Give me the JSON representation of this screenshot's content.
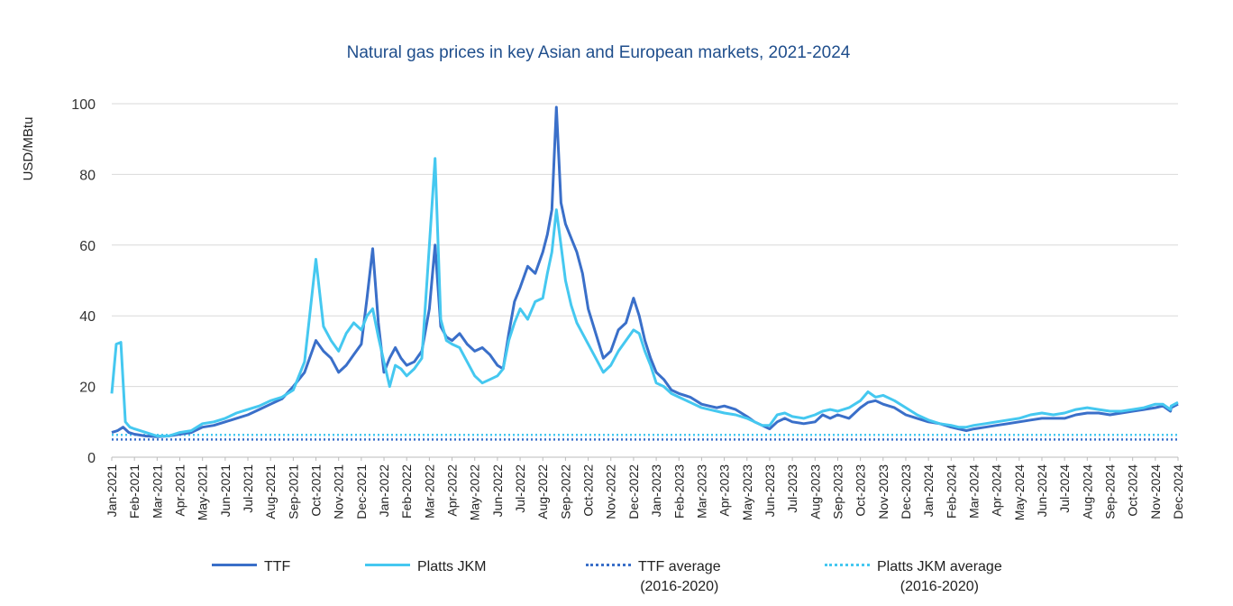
{
  "chart_data": {
    "type": "line",
    "title": "Natural gas prices in key Asian and European markets, 2021-2024",
    "ylabel": "USD/MBtu",
    "xlabel": "",
    "ylim": [
      0,
      100
    ],
    "yticks": [
      0,
      20,
      40,
      60,
      80,
      100
    ],
    "grid": true,
    "legend_position": "bottom",
    "x_tick_labels": [
      "Jan-2021",
      "Feb-2021",
      "Mar-2021",
      "Apr-2021",
      "May-2021",
      "Jun-2021",
      "Jul-2021",
      "Aug-2021",
      "Sep-2021",
      "Oct-2021",
      "Nov-2021",
      "Dec-2021",
      "Jan-2022",
      "Feb-2022",
      "Mar-2022",
      "Apr-2022",
      "May-2022",
      "Jun-2022",
      "Jul-2022",
      "Aug-2022",
      "Sep-2022",
      "Oct-2022",
      "Nov-2022",
      "Dec-2022",
      "Jan-2023",
      "Feb-2023",
      "Mar-2023",
      "Apr-2023",
      "May-2023",
      "Jun-2023",
      "Jul-2023",
      "Aug-2023",
      "Sep-2023",
      "Oct-2023",
      "Nov-2023",
      "Dec-2023",
      "Jan-2024",
      "Feb-2024",
      "Mar-2024",
      "Apr-2024",
      "May-2024",
      "Jun-2024",
      "Jul-2024",
      "Aug-2024",
      "Sep-2024",
      "Oct-2024",
      "Nov-2024",
      "Dec-2024"
    ],
    "series": [
      {
        "name": "TTF",
        "color": "#3a6fc9",
        "style": "solid",
        "points": [
          [
            "Jan-2021",
            7
          ],
          [
            "Jan-2021",
            7.5
          ],
          [
            "Jan-2021",
            8.5
          ],
          [
            "Jan-2021",
            7
          ],
          [
            "Feb-2021",
            6.5
          ],
          [
            "Feb-2021",
            6
          ],
          [
            "Mar-2021",
            5.8
          ],
          [
            "Mar-2021",
            6
          ],
          [
            "Apr-2021",
            6.5
          ],
          [
            "Apr-2021",
            7
          ],
          [
            "May-2021",
            8.5
          ],
          [
            "May-2021",
            9
          ],
          [
            "Jun-2021",
            10
          ],
          [
            "Jun-2021",
            11
          ],
          [
            "Jul-2021",
            12
          ],
          [
            "Jul-2021",
            13.5
          ],
          [
            "Aug-2021",
            15
          ],
          [
            "Aug-2021",
            16.5
          ],
          [
            "Sep-2021",
            20
          ],
          [
            "Sep-2021",
            24
          ],
          [
            "Oct-2021",
            33
          ],
          [
            "Oct-2021",
            30
          ],
          [
            "Oct-2021",
            28
          ],
          [
            "Nov-2021",
            24
          ],
          [
            "Nov-2021",
            26
          ],
          [
            "Nov-2021",
            29
          ],
          [
            "Dec-2021",
            32
          ],
          [
            "Dec-2021",
            45
          ],
          [
            "Dec-2021",
            59
          ],
          [
            "Dec-2021",
            38
          ],
          [
            "Jan-2022",
            24
          ],
          [
            "Jan-2022",
            28
          ],
          [
            "Jan-2022",
            31
          ],
          [
            "Jan-2022",
            28
          ],
          [
            "Feb-2022",
            26
          ],
          [
            "Feb-2022",
            27
          ],
          [
            "Feb-2022",
            30
          ],
          [
            "Mar-2022",
            42
          ],
          [
            "Mar-2022",
            60
          ],
          [
            "Mar-2022",
            37
          ],
          [
            "Mar-2022",
            34
          ],
          [
            "Apr-2022",
            33
          ],
          [
            "Apr-2022",
            35
          ],
          [
            "Apr-2022",
            32
          ],
          [
            "May-2022",
            30
          ],
          [
            "May-2022",
            31
          ],
          [
            "May-2022",
            29
          ],
          [
            "Jun-2022",
            26
          ],
          [
            "Jun-2022",
            25
          ],
          [
            "Jun-2022",
            35
          ],
          [
            "Jun-2022",
            44
          ],
          [
            "Jul-2022",
            48
          ],
          [
            "Jul-2022",
            54
          ],
          [
            "Jul-2022",
            52
          ],
          [
            "Aug-2022",
            58
          ],
          [
            "Aug-2022",
            63
          ],
          [
            "Aug-2022",
            70
          ],
          [
            "Aug-2022",
            99
          ],
          [
            "Aug-2022",
            72
          ],
          [
            "Sep-2022",
            66
          ],
          [
            "Sep-2022",
            62
          ],
          [
            "Sep-2022",
            58
          ],
          [
            "Sep-2022",
            52
          ],
          [
            "Oct-2022",
            42
          ],
          [
            "Oct-2022",
            35
          ],
          [
            "Oct-2022",
            28
          ],
          [
            "Nov-2022",
            30
          ],
          [
            "Nov-2022",
            36
          ],
          [
            "Nov-2022",
            38
          ],
          [
            "Dec-2022",
            45
          ],
          [
            "Dec-2022",
            40
          ],
          [
            "Dec-2022",
            33
          ],
          [
            "Dec-2022",
            28
          ],
          [
            "Jan-2023",
            24
          ],
          [
            "Jan-2023",
            22
          ],
          [
            "Jan-2023",
            19
          ],
          [
            "Feb-2023",
            18
          ],
          [
            "Feb-2023",
            17
          ],
          [
            "Mar-2023",
            15
          ],
          [
            "Mar-2023",
            14.5
          ],
          [
            "Mar-2023",
            14
          ],
          [
            "Apr-2023",
            14.5
          ],
          [
            "Apr-2023",
            13.5
          ],
          [
            "May-2023",
            11.5
          ],
          [
            "May-2023",
            10
          ],
          [
            "May-2023",
            9
          ],
          [
            "Jun-2023",
            8
          ],
          [
            "Jun-2023",
            10
          ],
          [
            "Jun-2023",
            11
          ],
          [
            "Jul-2023",
            10
          ],
          [
            "Jul-2023",
            9.5
          ],
          [
            "Aug-2023",
            10
          ],
          [
            "Aug-2023",
            12
          ],
          [
            "Aug-2023",
            11
          ],
          [
            "Sep-2023",
            12
          ],
          [
            "Sep-2023",
            11
          ],
          [
            "Oct-2023",
            14
          ],
          [
            "Oct-2023",
            15.5
          ],
          [
            "Oct-2023",
            16
          ],
          [
            "Nov-2023",
            15
          ],
          [
            "Nov-2023",
            14
          ],
          [
            "Dec-2023",
            12
          ],
          [
            "Dec-2023",
            11
          ],
          [
            "Jan-2024",
            10
          ],
          [
            "Jan-2024",
            9.5
          ],
          [
            "Feb-2024",
            8.5
          ],
          [
            "Feb-2024",
            8
          ],
          [
            "Feb-2024",
            7.5
          ],
          [
            "Mar-2024",
            8
          ],
          [
            "Mar-2024",
            8.5
          ],
          [
            "Apr-2024",
            9
          ],
          [
            "Apr-2024",
            9.5
          ],
          [
            "May-2024",
            10
          ],
          [
            "May-2024",
            10.5
          ],
          [
            "Jun-2024",
            11
          ],
          [
            "Jun-2024",
            11
          ],
          [
            "Jul-2024",
            11
          ],
          [
            "Jul-2024",
            12
          ],
          [
            "Aug-2024",
            12.5
          ],
          [
            "Aug-2024",
            12.5
          ],
          [
            "Sep-2024",
            12
          ],
          [
            "Sep-2024",
            12.5
          ],
          [
            "Oct-2024",
            13
          ],
          [
            "Oct-2024",
            13.5
          ],
          [
            "Nov-2024",
            14
          ],
          [
            "Nov-2024",
            14.5
          ],
          [
            "Nov-2024",
            13
          ],
          [
            "Dec-2024",
            14
          ],
          [
            "Dec-2024",
            15
          ]
        ]
      },
      {
        "name": "Platts JKM",
        "color": "#45c8f0",
        "style": "solid",
        "points": [
          [
            "Jan-2021",
            18
          ],
          [
            "Jan-2021",
            32
          ],
          [
            "Jan-2021",
            32.5
          ],
          [
            "Jan-2021",
            10
          ],
          [
            "Jan-2021",
            8.5
          ],
          [
            "Feb-2021",
            8
          ],
          [
            "Feb-2021",
            7
          ],
          [
            "Mar-2021",
            6
          ],
          [
            "Mar-2021",
            6
          ],
          [
            "Apr-2021",
            7
          ],
          [
            "Apr-2021",
            7.5
          ],
          [
            "May-2021",
            9.5
          ],
          [
            "May-2021",
            10
          ],
          [
            "Jun-2021",
            11
          ],
          [
            "Jun-2021",
            12.5
          ],
          [
            "Jul-2021",
            13.5
          ],
          [
            "Jul-2021",
            14.5
          ],
          [
            "Aug-2021",
            16
          ],
          [
            "Aug-2021",
            17
          ],
          [
            "Sep-2021",
            19
          ],
          [
            "Sep-2021",
            27
          ],
          [
            "Oct-2021",
            56
          ],
          [
            "Oct-2021",
            37
          ],
          [
            "Oct-2021",
            33
          ],
          [
            "Nov-2021",
            30
          ],
          [
            "Nov-2021",
            35
          ],
          [
            "Nov-2021",
            38
          ],
          [
            "Dec-2021",
            36
          ],
          [
            "Dec-2021",
            40
          ],
          [
            "Dec-2021",
            42
          ],
          [
            "Dec-2021",
            34
          ],
          [
            "Jan-2022",
            27
          ],
          [
            "Jan-2022",
            20
          ],
          [
            "Jan-2022",
            26
          ],
          [
            "Jan-2022",
            25
          ],
          [
            "Feb-2022",
            23
          ],
          [
            "Feb-2022",
            25
          ],
          [
            "Feb-2022",
            28
          ],
          [
            "Mar-2022",
            60
          ],
          [
            "Mar-2022",
            84.5
          ],
          [
            "Mar-2022",
            39
          ],
          [
            "Mar-2022",
            33
          ],
          [
            "Apr-2022",
            32
          ],
          [
            "Apr-2022",
            31
          ],
          [
            "Apr-2022",
            27
          ],
          [
            "May-2022",
            23
          ],
          [
            "May-2022",
            21
          ],
          [
            "May-2022",
            22
          ],
          [
            "Jun-2022",
            23
          ],
          [
            "Jun-2022",
            25
          ],
          [
            "Jun-2022",
            33
          ],
          [
            "Jun-2022",
            38
          ],
          [
            "Jul-2022",
            42
          ],
          [
            "Jul-2022",
            39
          ],
          [
            "Jul-2022",
            44
          ],
          [
            "Aug-2022",
            45
          ],
          [
            "Aug-2022",
            52
          ],
          [
            "Aug-2022",
            58
          ],
          [
            "Aug-2022",
            70
          ],
          [
            "Aug-2022",
            60
          ],
          [
            "Sep-2022",
            50
          ],
          [
            "Sep-2022",
            43
          ],
          [
            "Sep-2022",
            38
          ],
          [
            "Sep-2022",
            35
          ],
          [
            "Oct-2022",
            32
          ],
          [
            "Oct-2022",
            28
          ],
          [
            "Oct-2022",
            24
          ],
          [
            "Nov-2022",
            26
          ],
          [
            "Nov-2022",
            30
          ],
          [
            "Nov-2022",
            33
          ],
          [
            "Dec-2022",
            36
          ],
          [
            "Dec-2022",
            35
          ],
          [
            "Dec-2022",
            30
          ],
          [
            "Dec-2022",
            26
          ],
          [
            "Jan-2023",
            21
          ],
          [
            "Jan-2023",
            20
          ],
          [
            "Jan-2023",
            18
          ],
          [
            "Feb-2023",
            17
          ],
          [
            "Feb-2023",
            15.5
          ],
          [
            "Mar-2023",
            14
          ],
          [
            "Mar-2023",
            13.5
          ],
          [
            "Mar-2023",
            13
          ],
          [
            "Apr-2023",
            12.5
          ],
          [
            "Apr-2023",
            12
          ],
          [
            "May-2023",
            11
          ],
          [
            "May-2023",
            10
          ],
          [
            "May-2023",
            9
          ],
          [
            "Jun-2023",
            9
          ],
          [
            "Jun-2023",
            12
          ],
          [
            "Jun-2023",
            12.5
          ],
          [
            "Jul-2023",
            11.5
          ],
          [
            "Jul-2023",
            11
          ],
          [
            "Aug-2023",
            12
          ],
          [
            "Aug-2023",
            13
          ],
          [
            "Aug-2023",
            13.5
          ],
          [
            "Sep-2023",
            13
          ],
          [
            "Sep-2023",
            14
          ],
          [
            "Oct-2023",
            16
          ],
          [
            "Oct-2023",
            18.5
          ],
          [
            "Oct-2023",
            17
          ],
          [
            "Nov-2023",
            17.5
          ],
          [
            "Nov-2023",
            16
          ],
          [
            "Dec-2023",
            14
          ],
          [
            "Dec-2023",
            12
          ],
          [
            "Jan-2024",
            10.5
          ],
          [
            "Jan-2024",
            9.5
          ],
          [
            "Feb-2024",
            9
          ],
          [
            "Feb-2024",
            8.5
          ],
          [
            "Feb-2024",
            8.5
          ],
          [
            "Mar-2024",
            9
          ],
          [
            "Mar-2024",
            9.5
          ],
          [
            "Apr-2024",
            10
          ],
          [
            "Apr-2024",
            10.5
          ],
          [
            "May-2024",
            11
          ],
          [
            "May-2024",
            12
          ],
          [
            "Jun-2024",
            12.5
          ],
          [
            "Jun-2024",
            12
          ],
          [
            "Jul-2024",
            12.5
          ],
          [
            "Jul-2024",
            13.5
          ],
          [
            "Aug-2024",
            14
          ],
          [
            "Aug-2024",
            13.5
          ],
          [
            "Sep-2024",
            13
          ],
          [
            "Sep-2024",
            13
          ],
          [
            "Oct-2024",
            13.5
          ],
          [
            "Oct-2024",
            14
          ],
          [
            "Nov-2024",
            15
          ],
          [
            "Nov-2024",
            15
          ],
          [
            "Nov-2024",
            13.5
          ],
          [
            "Dec-2024",
            14.5
          ],
          [
            "Dec-2024",
            15.5
          ]
        ]
      },
      {
        "name": "TTF average\n(2016-2020)",
        "color": "#3a6fc9",
        "style": "dotted",
        "constant": 5
      },
      {
        "name": "Platts JKM average\n(2016-2020)",
        "color": "#45c8f0",
        "style": "dotted",
        "constant": 6.3
      }
    ]
  },
  "legend": {
    "items": [
      {
        "label_line1": "TTF",
        "label_line2": ""
      },
      {
        "label_line1": "Platts JKM",
        "label_line2": ""
      },
      {
        "label_line1": "TTF average",
        "label_line2": "(2016-2020)"
      },
      {
        "label_line1": "Platts JKM average",
        "label_line2": "(2016-2020)"
      }
    ]
  }
}
